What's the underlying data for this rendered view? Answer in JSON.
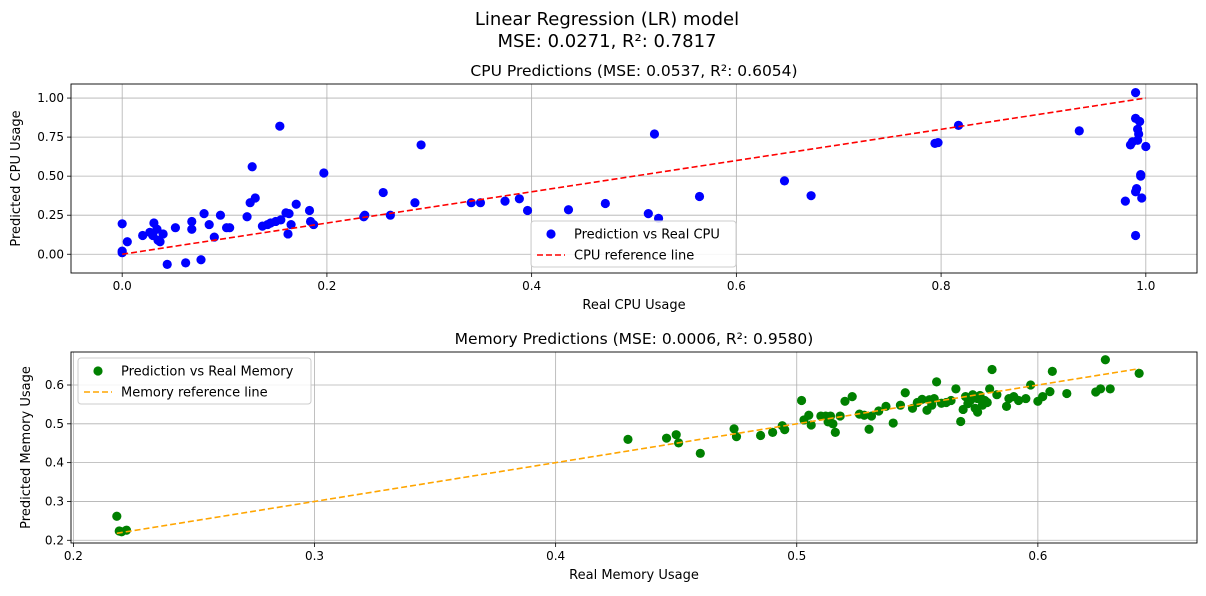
{
  "figure": {
    "title_line1": "Linear Regression (LR) model",
    "title_line2": "MSE: 0.0271, R²: 0.7817"
  },
  "chart_data": [
    {
      "type": "scatter",
      "title": "CPU Predictions (MSE: 0.0537, R²: 0.6054)",
      "xlabel": "Real CPU Usage",
      "ylabel": "Predicted CPU Usage",
      "xlim": [
        -0.05,
        1.05
      ],
      "ylim": [
        -0.12,
        1.09
      ],
      "xticks": [
        0.0,
        0.2,
        0.4,
        0.6,
        0.8,
        1.0
      ],
      "xtick_labels": [
        "0.0",
        "0.2",
        "0.4",
        "0.6",
        "0.8",
        "1.0"
      ],
      "yticks": [
        0.0,
        0.25,
        0.5,
        0.75,
        1.0
      ],
      "ytick_labels": [
        "0.00",
        "0.25",
        "0.50",
        "0.75",
        "1.00"
      ],
      "grid": true,
      "legend_position": "lower-center",
      "series": [
        {
          "name": "Prediction vs Real CPU",
          "color": "#0000ff",
          "marker": "circle",
          "points": [
            [
              0.0,
              0.195
            ],
            [
              0.0,
              0.02
            ],
            [
              0.0,
              0.01
            ],
            [
              0.005,
              0.08
            ],
            [
              0.02,
              0.12
            ],
            [
              0.027,
              0.14
            ],
            [
              0.03,
              0.12
            ],
            [
              0.031,
              0.2
            ],
            [
              0.034,
              0.16
            ],
            [
              0.035,
              0.09
            ],
            [
              0.037,
              0.08
            ],
            [
              0.04,
              0.13
            ],
            [
              0.044,
              -0.065
            ],
            [
              0.052,
              0.17
            ],
            [
              0.062,
              -0.055
            ],
            [
              0.068,
              0.16
            ],
            [
              0.068,
              0.21
            ],
            [
              0.077,
              -0.035
            ],
            [
              0.08,
              0.26
            ],
            [
              0.085,
              0.19
            ],
            [
              0.09,
              0.11
            ],
            [
              0.096,
              0.25
            ],
            [
              0.102,
              0.17
            ],
            [
              0.105,
              0.17
            ],
            [
              0.122,
              0.24
            ],
            [
              0.125,
              0.33
            ],
            [
              0.127,
              0.56
            ],
            [
              0.13,
              0.36
            ],
            [
              0.137,
              0.18
            ],
            [
              0.142,
              0.19
            ],
            [
              0.145,
              0.2
            ],
            [
              0.15,
              0.21
            ],
            [
              0.154,
              0.82
            ],
            [
              0.155,
              0.22
            ],
            [
              0.16,
              0.265
            ],
            [
              0.162,
              0.13
            ],
            [
              0.163,
              0.26
            ],
            [
              0.165,
              0.19
            ],
            [
              0.17,
              0.32
            ],
            [
              0.183,
              0.28
            ],
            [
              0.184,
              0.21
            ],
            [
              0.187,
              0.19
            ],
            [
              0.197,
              0.52
            ],
            [
              0.236,
              0.24
            ],
            [
              0.237,
              0.25
            ],
            [
              0.255,
              0.395
            ],
            [
              0.262,
              0.25
            ],
            [
              0.286,
              0.33
            ],
            [
              0.292,
              0.7
            ],
            [
              0.341,
              0.33
            ],
            [
              0.35,
              0.33
            ],
            [
              0.374,
              0.34
            ],
            [
              0.388,
              0.355
            ],
            [
              0.396,
              0.28
            ],
            [
              0.436,
              0.285
            ],
            [
              0.472,
              0.325
            ],
            [
              0.514,
              0.26
            ],
            [
              0.52,
              0.77
            ],
            [
              0.524,
              0.23
            ],
            [
              0.564,
              0.37
            ],
            [
              0.647,
              0.47
            ],
            [
              0.673,
              0.375
            ],
            [
              0.794,
              0.71
            ],
            [
              0.797,
              0.715
            ],
            [
              0.817,
              0.825
            ],
            [
              0.935,
              0.79
            ],
            [
              0.98,
              0.34
            ],
            [
              0.985,
              0.7
            ],
            [
              0.987,
              0.72
            ],
            [
              0.99,
              1.035
            ],
            [
              0.99,
              0.87
            ],
            [
              0.99,
              0.12
            ],
            [
              0.99,
              0.4
            ],
            [
              0.991,
              0.42
            ],
            [
              0.992,
              0.8
            ],
            [
              0.992,
              0.73
            ],
            [
              0.993,
              0.77
            ],
            [
              0.994,
              0.85
            ],
            [
              0.995,
              0.51
            ],
            [
              0.995,
              0.5
            ],
            [
              0.996,
              0.36
            ],
            [
              1.0,
              0.69
            ]
          ]
        },
        {
          "name": "CPU reference line",
          "color": "#ff0000",
          "line": "dashed",
          "points": [
            [
              0.0,
              0.0
            ],
            [
              1.0,
              1.0
            ]
          ]
        }
      ]
    },
    {
      "type": "scatter",
      "title": "Memory Predictions (MSE: 0.0006, R²: 0.9580)",
      "xlabel": "Real Memory Usage",
      "ylabel": "Predicted Memory Usage",
      "xlim": [
        0.199,
        0.666
      ],
      "ylim": [
        0.193,
        0.685
      ],
      "xticks": [
        0.2,
        0.3,
        0.4,
        0.5,
        0.6
      ],
      "xtick_labels": [
        "0.2",
        "0.3",
        "0.4",
        "0.5",
        "0.6"
      ],
      "yticks": [
        0.2,
        0.3,
        0.4,
        0.5,
        0.6
      ],
      "ytick_labels": [
        "0.2",
        "0.3",
        "0.4",
        "0.5",
        "0.6"
      ],
      "grid": true,
      "legend_position": "upper-left",
      "series": [
        {
          "name": "Prediction vs Real Memory",
          "color": "#008000",
          "marker": "circle",
          "points": [
            [
              0.218,
              0.262
            ],
            [
              0.219,
              0.224
            ],
            [
              0.22,
              0.222
            ],
            [
              0.222,
              0.226
            ],
            [
              0.43,
              0.46
            ],
            [
              0.446,
              0.463
            ],
            [
              0.45,
              0.472
            ],
            [
              0.451,
              0.451
            ],
            [
              0.46,
              0.424
            ],
            [
              0.474,
              0.487
            ],
            [
              0.475,
              0.467
            ],
            [
              0.485,
              0.47
            ],
            [
              0.49,
              0.478
            ],
            [
              0.494,
              0.495
            ],
            [
              0.495,
              0.485
            ],
            [
              0.502,
              0.56
            ],
            [
              0.503,
              0.51
            ],
            [
              0.505,
              0.522
            ],
            [
              0.506,
              0.497
            ],
            [
              0.51,
              0.52
            ],
            [
              0.512,
              0.52
            ],
            [
              0.513,
              0.505
            ],
            [
              0.514,
              0.52
            ],
            [
              0.515,
              0.5
            ],
            [
              0.516,
              0.478
            ],
            [
              0.518,
              0.52
            ],
            [
              0.52,
              0.558
            ],
            [
              0.523,
              0.57
            ],
            [
              0.526,
              0.525
            ],
            [
              0.528,
              0.522
            ],
            [
              0.53,
              0.486
            ],
            [
              0.531,
              0.52
            ],
            [
              0.534,
              0.533
            ],
            [
              0.537,
              0.545
            ],
            [
              0.54,
              0.502
            ],
            [
              0.543,
              0.548
            ],
            [
              0.545,
              0.58
            ],
            [
              0.548,
              0.54
            ],
            [
              0.55,
              0.555
            ],
            [
              0.552,
              0.563
            ],
            [
              0.554,
              0.535
            ],
            [
              0.555,
              0.562
            ],
            [
              0.556,
              0.548
            ],
            [
              0.557,
              0.565
            ],
            [
              0.558,
              0.608
            ],
            [
              0.56,
              0.553
            ],
            [
              0.562,
              0.555
            ],
            [
              0.564,
              0.56
            ],
            [
              0.566,
              0.59
            ],
            [
              0.568,
              0.506
            ],
            [
              0.569,
              0.537
            ],
            [
              0.57,
              0.57
            ],
            [
              0.571,
              0.552
            ],
            [
              0.572,
              0.56
            ],
            [
              0.573,
              0.575
            ],
            [
              0.574,
              0.54
            ],
            [
              0.575,
              0.53
            ],
            [
              0.575,
              0.565
            ],
            [
              0.576,
              0.573
            ],
            [
              0.577,
              0.548
            ],
            [
              0.578,
              0.56
            ],
            [
              0.579,
              0.555
            ],
            [
              0.58,
              0.59
            ],
            [
              0.581,
              0.64
            ],
            [
              0.583,
              0.575
            ],
            [
              0.587,
              0.545
            ],
            [
              0.588,
              0.565
            ],
            [
              0.59,
              0.57
            ],
            [
              0.592,
              0.56
            ],
            [
              0.595,
              0.565
            ],
            [
              0.597,
              0.6
            ],
            [
              0.6,
              0.558
            ],
            [
              0.602,
              0.57
            ],
            [
              0.605,
              0.583
            ],
            [
              0.606,
              0.635
            ],
            [
              0.612,
              0.578
            ],
            [
              0.624,
              0.582
            ],
            [
              0.626,
              0.59
            ],
            [
              0.628,
              0.665
            ],
            [
              0.63,
              0.59
            ],
            [
              0.642,
              0.63
            ]
          ]
        },
        {
          "name": "Memory reference line",
          "color": "#ffa500",
          "line": "dashed",
          "points": [
            [
              0.218,
              0.218
            ],
            [
              0.642,
              0.642
            ]
          ]
        }
      ]
    }
  ]
}
